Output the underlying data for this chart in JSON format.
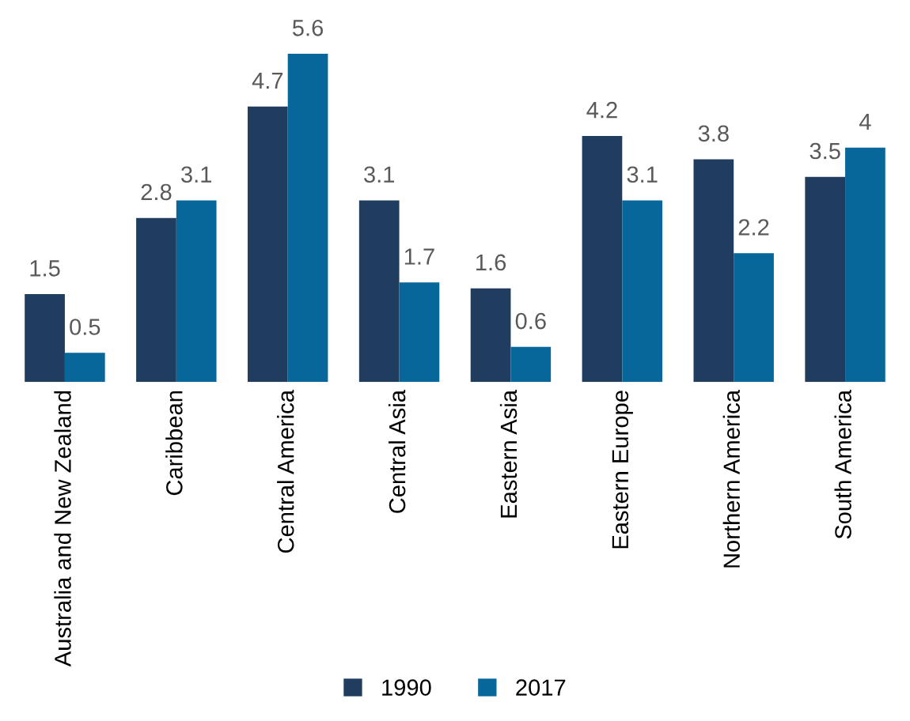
{
  "chart_data": {
    "type": "bar",
    "categories": [
      "Australia and New Zealand",
      "Caribbean",
      "Central America",
      "Central Asia",
      "Eastern Asia",
      "Eastern Europe",
      "Northern America",
      "South America"
    ],
    "series": [
      {
        "name": "1990",
        "color": "#203d5f",
        "values": [
          1.5,
          2.8,
          4.7,
          3.1,
          1.6,
          4.2,
          3.8,
          3.5
        ]
      },
      {
        "name": "2017",
        "color": "#07669a",
        "values": [
          0.5,
          3.1,
          5.6,
          1.7,
          0.6,
          3.1,
          2.2,
          4
        ]
      }
    ],
    "data_labels": true,
    "legend": "bottom",
    "grid": false
  }
}
